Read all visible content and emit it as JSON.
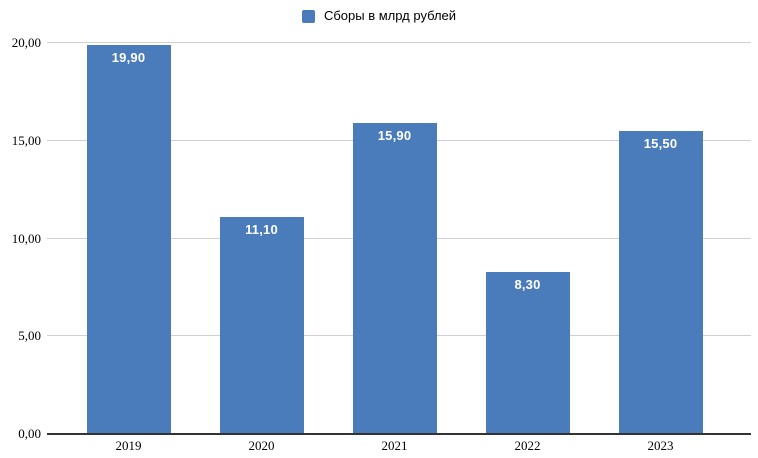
{
  "chart_data": {
    "type": "bar",
    "title": "",
    "legend": {
      "label": "Сборы в млрд рублей",
      "position": "top"
    },
    "categories": [
      "2019",
      "2020",
      "2021",
      "2022",
      "2023"
    ],
    "series": [
      {
        "name": "Сборы в млрд рублей",
        "values": [
          19.9,
          11.1,
          15.9,
          8.3,
          15.5
        ]
      }
    ],
    "bar_value_labels": [
      "19,90",
      "11,10",
      "15,90",
      "8,30",
      "15,50"
    ],
    "y_axis": {
      "range": [
        0,
        20
      ],
      "ticks": [
        0,
        5,
        10,
        15,
        20
      ],
      "tick_labels": [
        "0,00",
        "5,00",
        "10,00",
        "15,00",
        "20,00"
      ]
    },
    "grid": true,
    "colors": {
      "bar": "#4a7cbb",
      "gridline": "#d0d0d0",
      "axis_line": "#333333",
      "bar_label_text": "#ffffff",
      "tick_text": "#000000",
      "background": "#ffffff"
    }
  }
}
